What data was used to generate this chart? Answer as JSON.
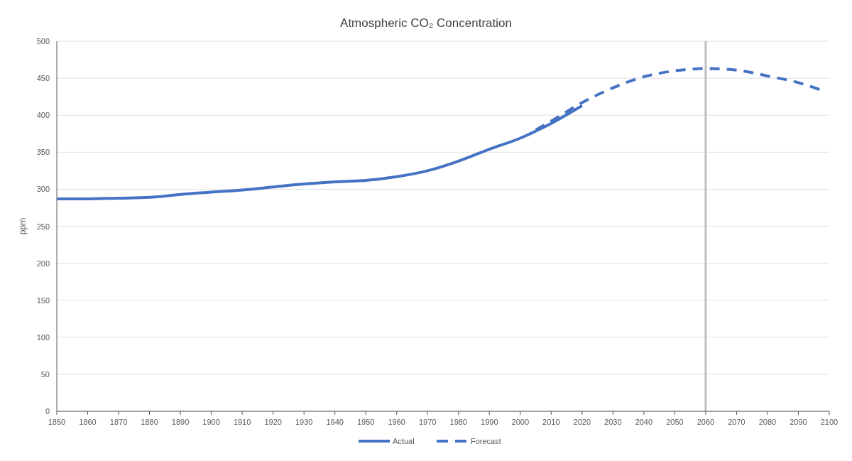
{
  "chart_data": {
    "type": "line",
    "title": "Atmospheric CO₂ Concentration",
    "ylabel": "ppm",
    "xlim": [
      1850,
      2100
    ],
    "xticks": [
      1850,
      1860,
      1870,
      1880,
      1890,
      1900,
      1910,
      1920,
      1930,
      1940,
      1950,
      1960,
      1970,
      1980,
      1990,
      2000,
      2010,
      2020,
      2030,
      2040,
      2050,
      2060,
      2070,
      2080,
      2090,
      2100
    ],
    "ylim": [
      0,
      500
    ],
    "yticks": [
      0,
      50,
      100,
      150,
      200,
      250,
      300,
      350,
      400,
      450,
      500
    ],
    "grid": "y",
    "legend": "bottom",
    "series": [
      {
        "name": "Actual",
        "color": "#4472c4",
        "line_style": "solid",
        "x": [
          1850,
          1860,
          1870,
          1880,
          1890,
          1900,
          1910,
          1920,
          1930,
          1940,
          1950,
          1960,
          1970,
          1980,
          1990,
          2000,
          2010,
          2020
        ],
        "values": [
          287,
          287,
          288,
          289,
          293,
          296,
          299,
          303,
          307,
          310,
          312,
          317,
          325,
          338,
          354,
          369,
          389,
          413
        ]
      },
      {
        "name": "Forecast",
        "color": "#4472c4",
        "line_style": "dashed",
        "x": [
          2005,
          2010,
          2020,
          2030,
          2040,
          2050,
          2060,
          2070,
          2080,
          2090,
          2098
        ],
        "values": [
          380,
          392,
          417,
          437,
          452,
          460,
          463,
          461,
          453,
          444,
          433
        ]
      }
    ],
    "ref_lines": [
      {
        "axis": "x",
        "value": 2060,
        "color": "#bfbfbf"
      }
    ]
  }
}
